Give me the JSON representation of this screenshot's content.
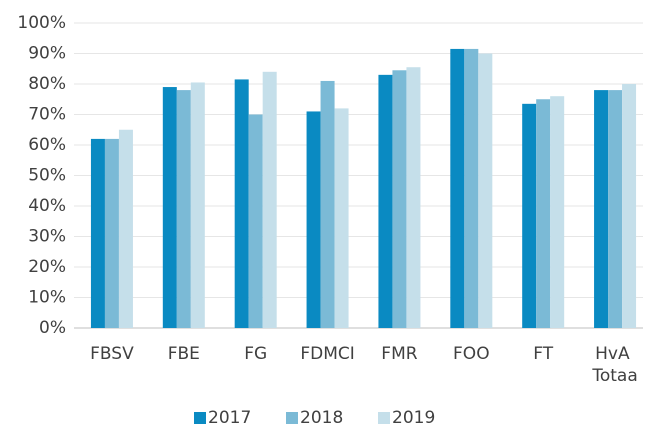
{
  "chart_data": {
    "type": "bar",
    "categories": [
      "FBSV",
      "FBE",
      "FG",
      "FDMCI",
      "FMR",
      "FOO",
      "FT",
      "HvA Totaa"
    ],
    "series": [
      {
        "name": "2017",
        "color": "#0a8ac2",
        "values": [
          62,
          79,
          81.5,
          71,
          83,
          91.5,
          73.5,
          78
        ]
      },
      {
        "name": "2018",
        "color": "#7bbad6",
        "values": [
          62,
          78,
          70,
          81,
          84.5,
          91.5,
          75,
          78
        ]
      },
      {
        "name": "2019",
        "color": "#c5dfea",
        "values": [
          65,
          80.5,
          84,
          72,
          85.5,
          90,
          76,
          80
        ]
      }
    ],
    "ylim": [
      0,
      100
    ],
    "yticks": [
      {
        "value": 0,
        "label": "0%"
      },
      {
        "value": 10,
        "label": "10%"
      },
      {
        "value": 20,
        "label": "20%"
      },
      {
        "value": 30,
        "label": "30%"
      },
      {
        "value": 40,
        "label": "40%"
      },
      {
        "value": 50,
        "label": "50%"
      },
      {
        "value": 60,
        "label": "60%"
      },
      {
        "value": 70,
        "label": "70%"
      },
      {
        "value": 80,
        "label": "80%"
      },
      {
        "value": 90,
        "label": "90%"
      },
      {
        "value": 100,
        "label": "100%"
      }
    ],
    "grid": true,
    "legend": "bottom"
  }
}
